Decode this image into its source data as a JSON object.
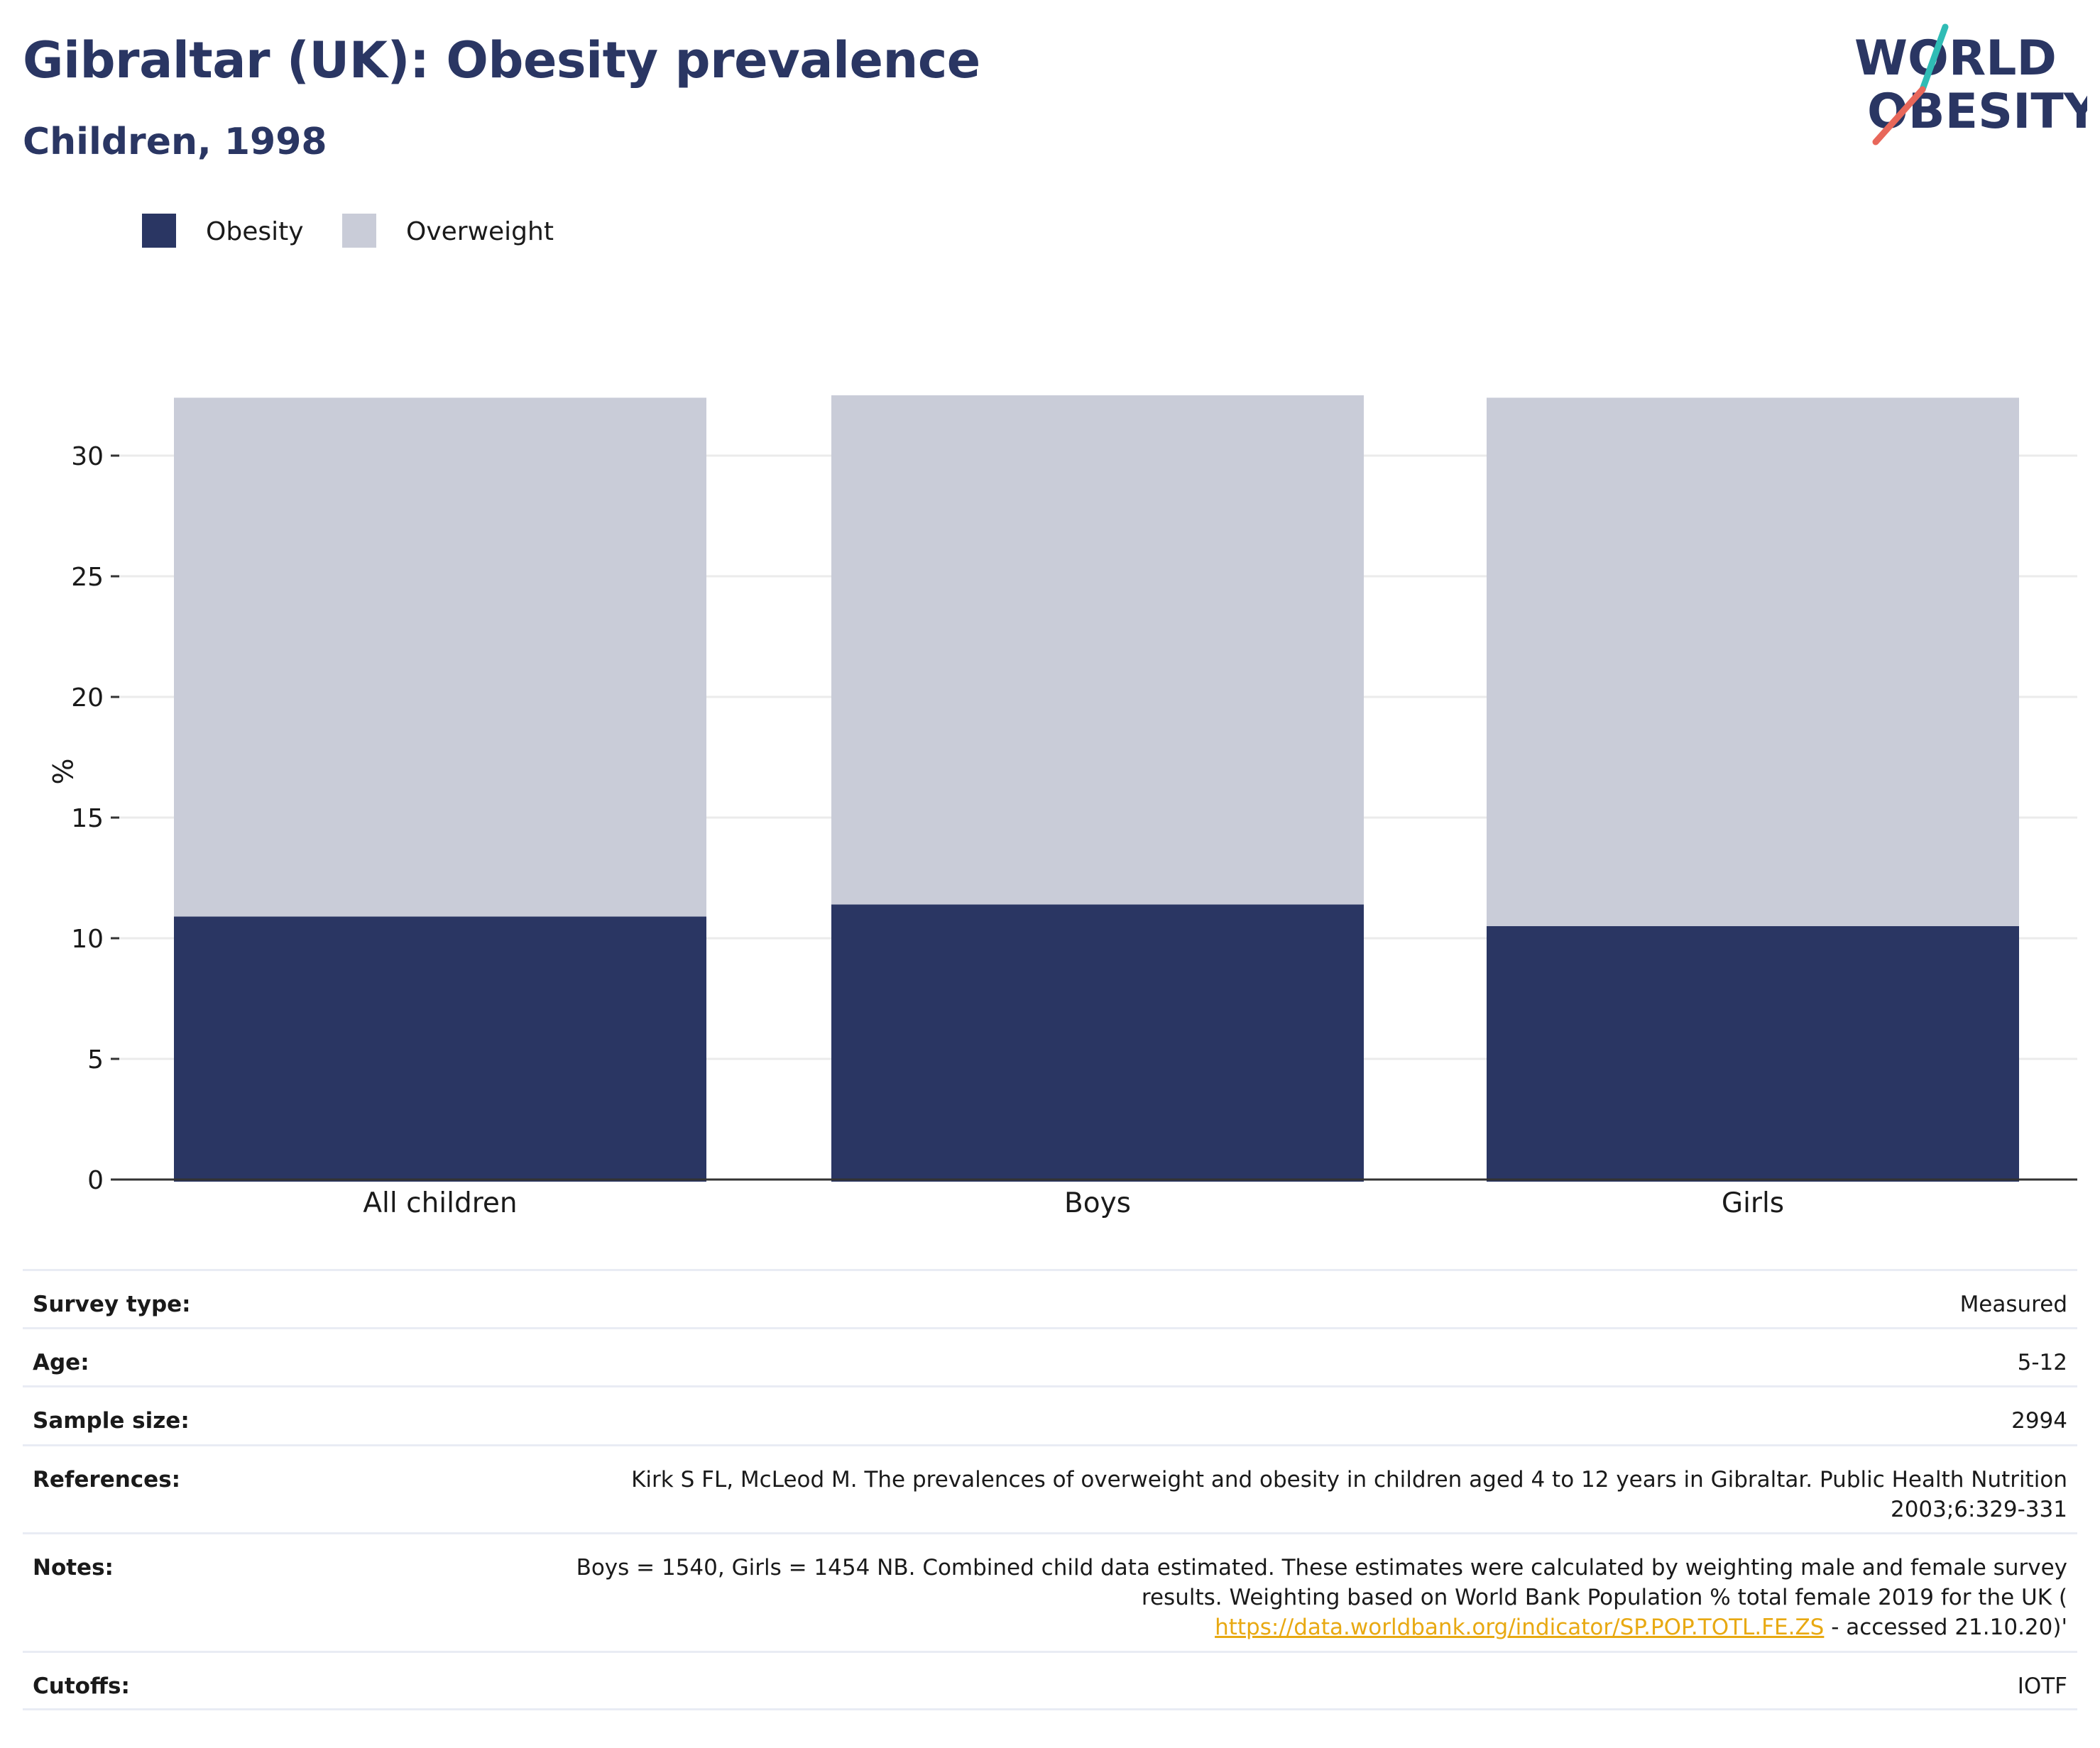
{
  "header": {
    "title": "Gibraltar (UK): Obesity prevalence",
    "subtitle": "Children, 1998"
  },
  "logo": {
    "line1": "WORLD",
    "line2": "OBESITY",
    "text_color": "#2a3663",
    "slash_colors": [
      "#2fbcb5",
      "#e8675a"
    ]
  },
  "chart_data": {
    "type": "bar",
    "stacked": true,
    "categories": [
      "All children",
      "Boys",
      "Girls"
    ],
    "series": [
      {
        "name": "Obesity",
        "values": [
          10.9,
          11.4,
          10.5
        ],
        "color": "#2a3663"
      },
      {
        "name": "Overweight",
        "values": [
          21.5,
          21.1,
          21.9
        ],
        "color": "#c9ccd8"
      }
    ],
    "ylabel": "%",
    "ylim": [
      0,
      32.5
    ],
    "yticks": [
      0,
      5,
      10,
      15,
      20,
      25,
      30
    ],
    "grid": true,
    "legend_position": "top-left"
  },
  "info": {
    "survey_type": {
      "label": "Survey type:",
      "value": "Measured"
    },
    "age": {
      "label": "Age:",
      "value": "5-12"
    },
    "sample_size": {
      "label": "Sample size:",
      "value": "2994"
    },
    "references": {
      "label": "References:",
      "line1": "Kirk S FL, McLeod M. The prevalences of overweight and obesity in children aged 4 to 12 years in Gibraltar. Public Health Nutrition",
      "line2": "2003;6:329-331"
    },
    "notes": {
      "label": "Notes:",
      "line1": "Boys = 1540, Girls = 1454 NB. Combined child data estimated. These estimates were calculated by weighting male and female survey",
      "line2": "results. Weighting based on World Bank Population % total female 2019 for the UK (",
      "link": "https://data.worldbank.org/indicator/SP.POP.TOTL.FE.ZS",
      "after_link": " - accessed 21.10.20)'"
    },
    "cutoffs": {
      "label": "Cutoffs:",
      "value": "IOTF"
    }
  }
}
